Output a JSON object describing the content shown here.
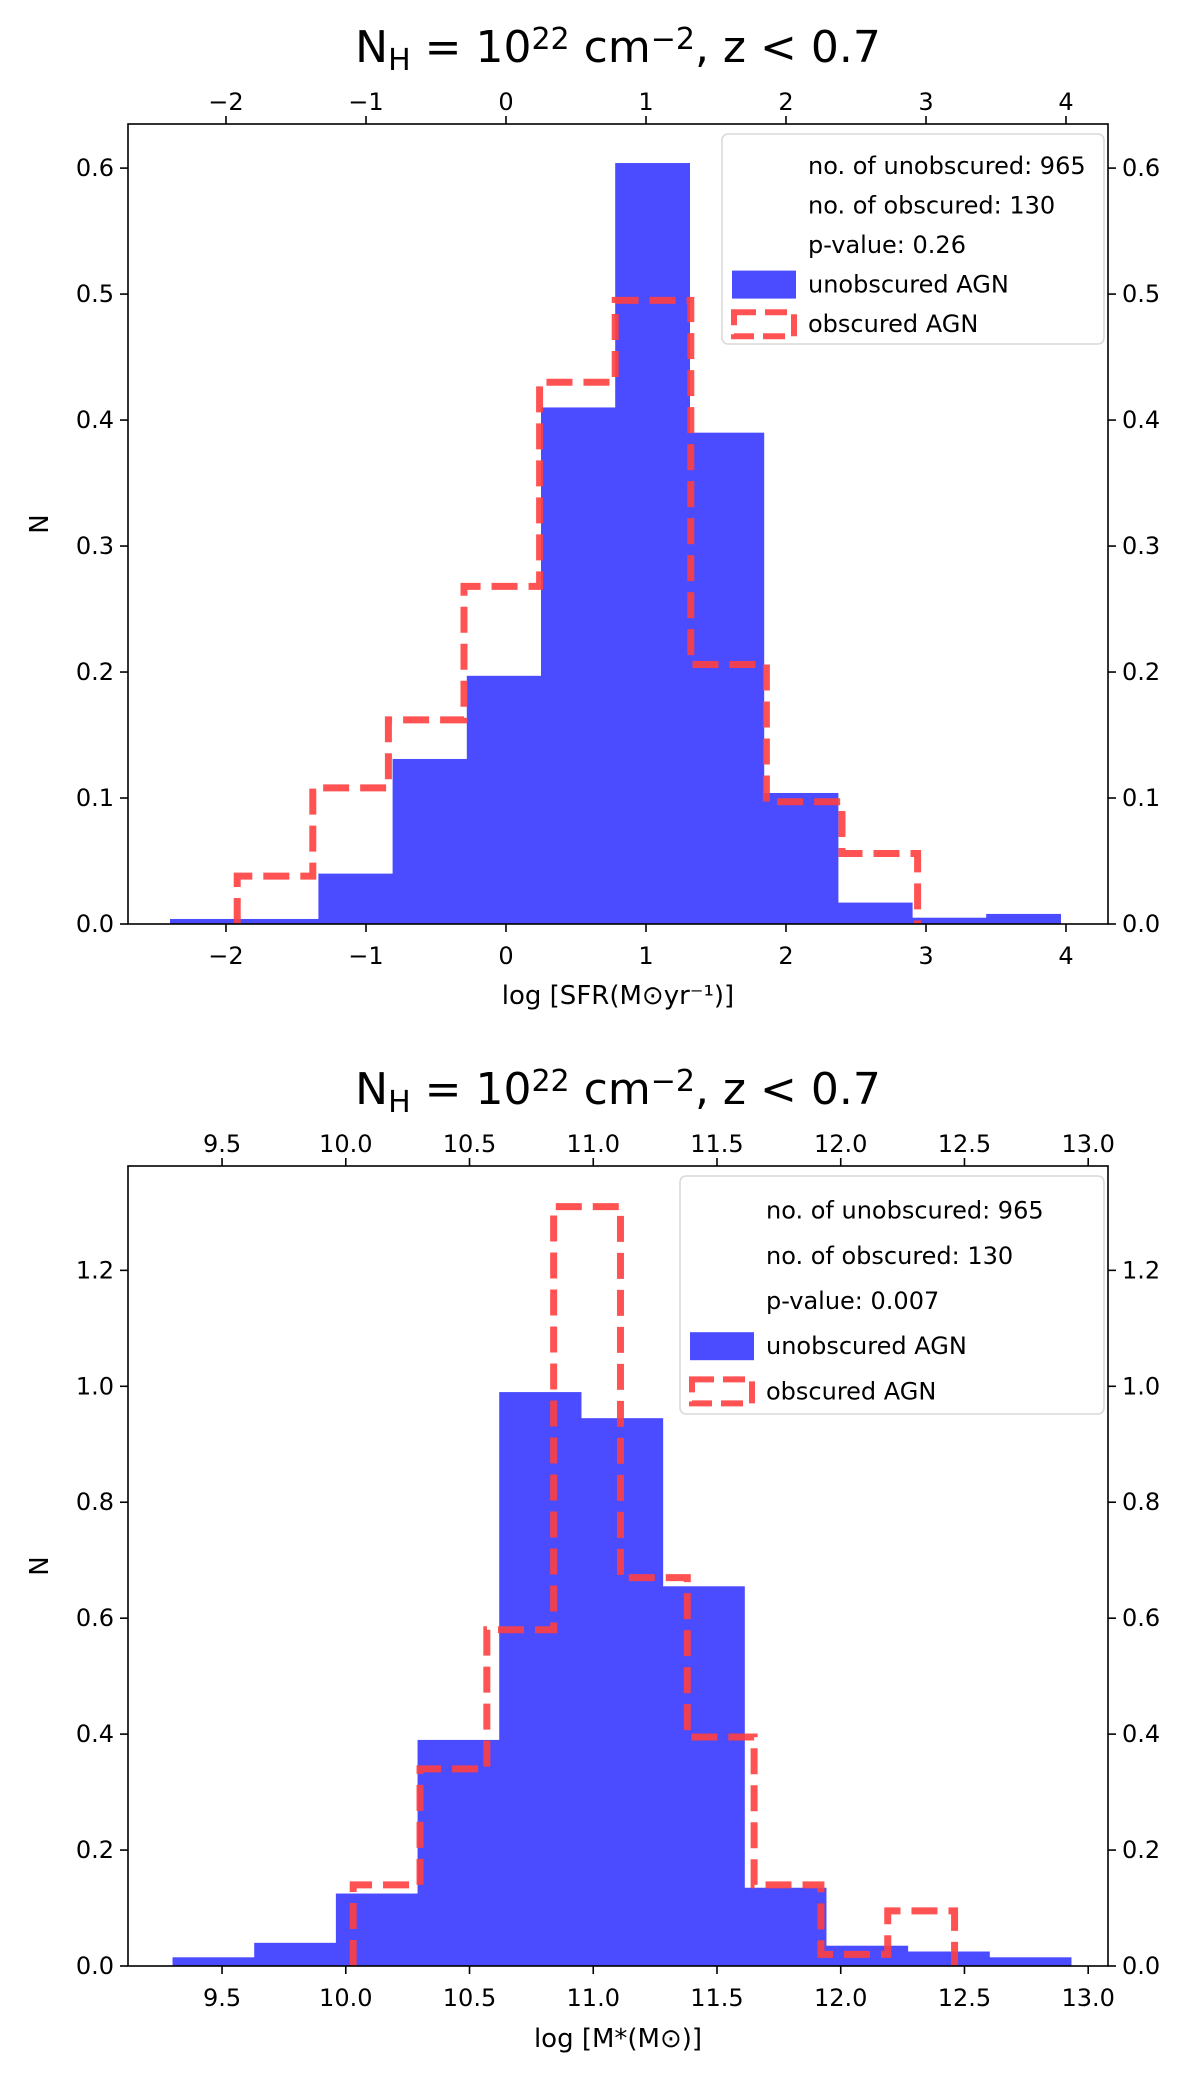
{
  "chart_data": [
    {
      "type": "bar",
      "title": "N_H = 10^22 cm^-2, z < 0.7",
      "title_parts": {
        "prefix": "N",
        "sub": "H",
        "eq": " = 10",
        "sup": "22",
        "unit": " cm",
        "unit_sup": "−2",
        "tail": ", z < 0.7"
      },
      "xlabel": "log [SFR(M⊙yr⁻¹)]",
      "ylabel": "N",
      "xlim": [
        -2.7,
        4.3
      ],
      "ylim": [
        0,
        0.635
      ],
      "xticks": [
        -2,
        -1,
        0,
        1,
        2,
        3,
        4
      ],
      "xtick_labels": [
        "−2",
        "−1",
        "0",
        "1",
        "2",
        "3",
        "4"
      ],
      "yticks": [
        0.0,
        0.1,
        0.2,
        0.3,
        0.4,
        0.5,
        0.6
      ],
      "ytick_labels": [
        "0.0",
        "0.1",
        "0.2",
        "0.3",
        "0.4",
        "0.5",
        "0.6"
      ],
      "grid": false,
      "legend_position": "top-right",
      "legend_info": [
        "no. of unobscured: 965",
        "no. of obscured: 130",
        "p-value: 0.26"
      ],
      "series": [
        {
          "name": "unobscured AGN",
          "style": "filled",
          "color": "#4b4bff",
          "bins": [
            -2.4,
            -1.87,
            -1.34,
            -0.81,
            -0.28,
            0.25,
            0.78,
            1.31,
            1.84,
            2.37,
            2.9,
            3.43,
            3.96
          ],
          "values": [
            0.004,
            0.004,
            0.04,
            0.131,
            0.197,
            0.41,
            0.604,
            0.39,
            0.104,
            0.017,
            0.005,
            0.008
          ]
        },
        {
          "name": "obscured AGN",
          "style": "dashed-step",
          "color": "#ff4040",
          "bins": [
            -1.92,
            -1.38,
            -0.84,
            -0.3,
            0.24,
            0.78,
            1.32,
            1.86,
            2.4,
            2.94
          ],
          "values": [
            0.038,
            0.108,
            0.162,
            0.268,
            0.43,
            0.495,
            0.206,
            0.097,
            0.056
          ]
        }
      ]
    },
    {
      "type": "bar",
      "title": "N_H = 10^22 cm^-2, z < 0.7",
      "title_parts": {
        "prefix": "N",
        "sub": "H",
        "eq": " = 10",
        "sup": "22",
        "unit": " cm",
        "unit_sup": "−2",
        "tail": ", z < 0.7"
      },
      "xlabel": "log [M*(M⊙)]",
      "ylabel": "N",
      "xlim": [
        9.12,
        13.08
      ],
      "ylim": [
        0,
        1.38
      ],
      "xticks": [
        9.5,
        10.0,
        10.5,
        11.0,
        11.5,
        12.0,
        12.5,
        13.0
      ],
      "xtick_labels": [
        "9.5",
        "10.0",
        "10.5",
        "11.0",
        "11.5",
        "12.0",
        "12.5",
        "13.0"
      ],
      "yticks": [
        0.0,
        0.2,
        0.4,
        0.6,
        0.8,
        1.0,
        1.2
      ],
      "ytick_labels": [
        "0.0",
        "0.2",
        "0.4",
        "0.6",
        "0.8",
        "1.0",
        "1.2"
      ],
      "grid": false,
      "legend_position": "top-right",
      "legend_info": [
        "no. of unobscured: 965",
        "no. of obscured: 130",
        "p-value: 0.007"
      ],
      "series": [
        {
          "name": "unobscured AGN",
          "style": "filled",
          "color": "#4b4bff",
          "bins": [
            9.3,
            9.63,
            9.96,
            10.29,
            10.62,
            10.95,
            11.28,
            11.61,
            11.94,
            12.27,
            12.6,
            12.93
          ],
          "values": [
            0.015,
            0.04,
            0.125,
            0.39,
            0.99,
            0.945,
            0.655,
            0.135,
            0.035,
            0.025,
            0.015
          ]
        },
        {
          "name": "obscured AGN",
          "style": "dashed-step",
          "color": "#ff4040",
          "bins": [
            10.03,
            10.3,
            10.57,
            10.84,
            11.11,
            11.38,
            11.65,
            11.92,
            12.19,
            12.46
          ],
          "values": [
            0.14,
            0.34,
            0.58,
            1.31,
            0.67,
            0.395,
            0.14,
            0.02,
            0.095
          ]
        }
      ]
    }
  ]
}
